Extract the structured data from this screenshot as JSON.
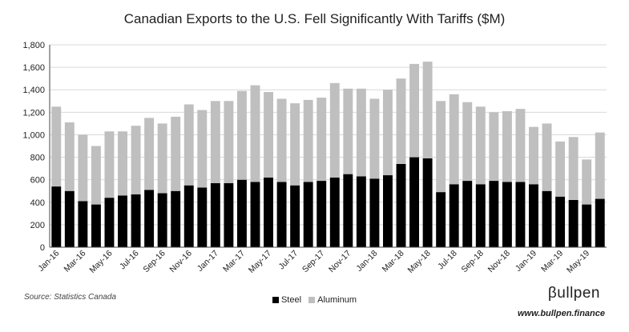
{
  "chart_data": {
    "type": "bar",
    "stacked": true,
    "title": "Canadian Exports to the U.S. Fell Significantly With Tariffs ($M)",
    "xlabel": "",
    "ylabel": "",
    "ylim": [
      0,
      1800
    ],
    "yticks": [
      0,
      200,
      400,
      600,
      800,
      1000,
      1200,
      1400,
      1600,
      1800
    ],
    "ytick_labels": [
      "0",
      "200",
      "400",
      "600",
      "800",
      "1,000",
      "1,200",
      "1,400",
      "1,600",
      "1,800"
    ],
    "grid": true,
    "legend_position": "bottom-center",
    "categories": [
      "Jan-16",
      "Feb-16",
      "Mar-16",
      "Apr-16",
      "May-16",
      "Jun-16",
      "Jul-16",
      "Aug-16",
      "Sep-16",
      "Oct-16",
      "Nov-16",
      "Dec-16",
      "Jan-17",
      "Feb-17",
      "Mar-17",
      "Apr-17",
      "May-17",
      "Jun-17",
      "Jul-17",
      "Aug-17",
      "Sep-17",
      "Oct-17",
      "Nov-17",
      "Dec-17",
      "Jan-18",
      "Feb-18",
      "Mar-18",
      "Apr-18",
      "May-18",
      "Jun-18",
      "Jul-18",
      "Aug-18",
      "Sep-18",
      "Oct-18",
      "Nov-18",
      "Dec-18",
      "Jan-19",
      "Feb-19",
      "Mar-19",
      "Apr-19",
      "May-19",
      "Jun-19"
    ],
    "xtick_labels": [
      "Jan-16",
      "Mar-16",
      "May-16",
      "Jul-16",
      "Sep-16",
      "Nov-16",
      "Jan-17",
      "Mar-17",
      "May-17",
      "Jul-17",
      "Sep-17",
      "Nov-17",
      "Jan-18",
      "Mar-18",
      "May-18",
      "Jul-18",
      "Sep-18",
      "Nov-18",
      "Jan-19",
      "Mar-19",
      "May-19"
    ],
    "series": [
      {
        "name": "Steel",
        "color": "#000000",
        "values": [
          540,
          500,
          410,
          380,
          440,
          460,
          470,
          510,
          480,
          500,
          550,
          530,
          570,
          570,
          600,
          580,
          620,
          580,
          550,
          580,
          590,
          620,
          650,
          630,
          610,
          640,
          740,
          800,
          790,
          490,
          560,
          590,
          560,
          590,
          580,
          580,
          560,
          500,
          450,
          420,
          380,
          430
        ]
      },
      {
        "name": "Aluminum",
        "color": "#bfbfbf",
        "values": [
          710,
          610,
          590,
          520,
          590,
          570,
          610,
          640,
          620,
          660,
          720,
          690,
          730,
          730,
          790,
          860,
          760,
          740,
          730,
          730,
          740,
          840,
          760,
          780,
          710,
          760,
          760,
          830,
          860,
          810,
          800,
          700,
          690,
          610,
          630,
          650,
          510,
          600,
          490,
          560,
          400,
          590
        ]
      }
    ]
  },
  "source_note": "Source: Statistics Canada",
  "brand": {
    "logo_text": "βullpen",
    "url": "www.bullpen.finance"
  }
}
